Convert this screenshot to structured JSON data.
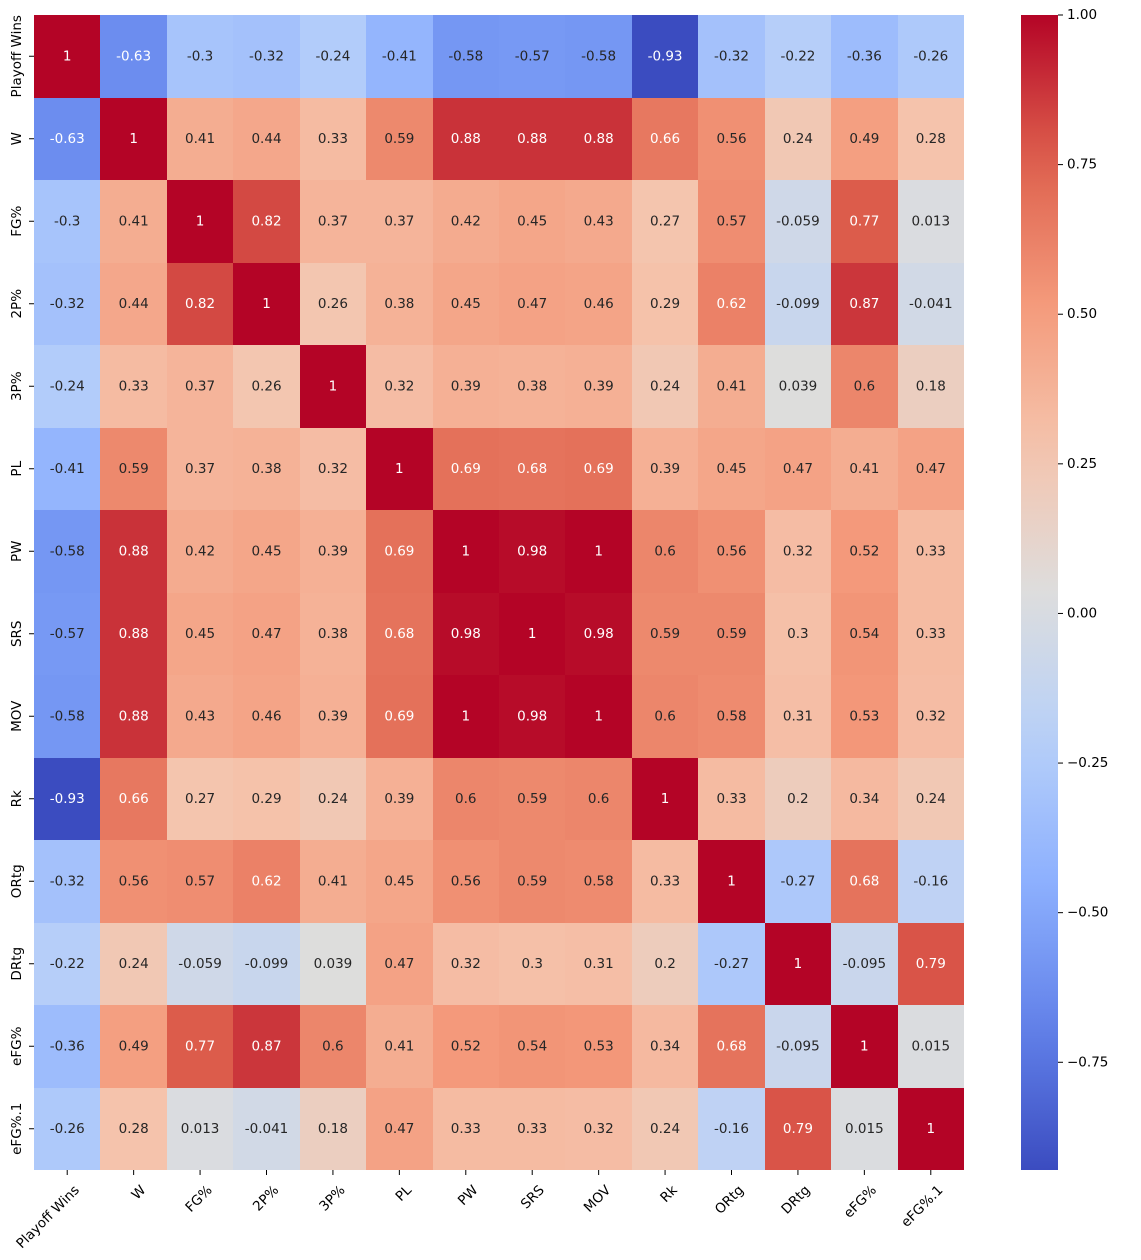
{
  "chart_data": {
    "type": "heatmap",
    "title": "",
    "xlabel": "",
    "ylabel": "",
    "colormap": "coolwarm",
    "vmin": -0.93,
    "vmax": 1.0,
    "colorbar_ticks": [
      1.0,
      0.75,
      0.5,
      0.25,
      0.0,
      -0.25,
      -0.5,
      -0.75
    ],
    "colorbar_tick_labels": [
      "1.00",
      "0.75",
      "0.50",
      "0.25",
      "0.00",
      "−0.25",
      "−0.50",
      "−0.75"
    ],
    "labels": [
      "Playoff Wins",
      "W",
      "FG%",
      "2P%",
      "3P%",
      "PL",
      "PW",
      "SRS",
      "MOV",
      "Rk",
      "ORtg",
      "DRtg",
      "eFG%",
      "eFG%.1"
    ],
    "values": [
      [
        1,
        -0.63,
        -0.3,
        -0.32,
        -0.24,
        -0.41,
        -0.58,
        -0.57,
        -0.58,
        -0.93,
        -0.32,
        -0.22,
        -0.36,
        -0.26
      ],
      [
        -0.63,
        1,
        0.41,
        0.44,
        0.33,
        0.59,
        0.88,
        0.88,
        0.88,
        0.66,
        0.56,
        0.24,
        0.49,
        0.28
      ],
      [
        -0.3,
        0.41,
        1,
        0.82,
        0.37,
        0.37,
        0.42,
        0.45,
        0.43,
        0.27,
        0.57,
        -0.059,
        0.77,
        0.013
      ],
      [
        -0.32,
        0.44,
        0.82,
        1,
        0.26,
        0.38,
        0.45,
        0.47,
        0.46,
        0.29,
        0.62,
        -0.099,
        0.87,
        -0.041
      ],
      [
        -0.24,
        0.33,
        0.37,
        0.26,
        1,
        0.32,
        0.39,
        0.38,
        0.39,
        0.24,
        0.41,
        0.039,
        0.6,
        0.18
      ],
      [
        -0.41,
        0.59,
        0.37,
        0.38,
        0.32,
        1,
        0.69,
        0.68,
        0.69,
        0.39,
        0.45,
        0.47,
        0.41,
        0.47
      ],
      [
        -0.58,
        0.88,
        0.42,
        0.45,
        0.39,
        0.69,
        1,
        0.98,
        1,
        0.6,
        0.56,
        0.32,
        0.52,
        0.33
      ],
      [
        -0.57,
        0.88,
        0.45,
        0.47,
        0.38,
        0.68,
        0.98,
        1,
        0.98,
        0.59,
        0.59,
        0.3,
        0.54,
        0.33
      ],
      [
        -0.58,
        0.88,
        0.43,
        0.46,
        0.39,
        0.69,
        1,
        0.98,
        1,
        0.6,
        0.58,
        0.31,
        0.53,
        0.32
      ],
      [
        -0.93,
        0.66,
        0.27,
        0.29,
        0.24,
        0.39,
        0.6,
        0.59,
        0.6,
        1,
        0.33,
        0.2,
        0.34,
        0.24
      ],
      [
        -0.32,
        0.56,
        0.57,
        0.62,
        0.41,
        0.45,
        0.56,
        0.59,
        0.58,
        0.33,
        1,
        -0.27,
        0.68,
        -0.16
      ],
      [
        -0.22,
        0.24,
        -0.059,
        -0.099,
        0.039,
        0.47,
        0.32,
        0.3,
        0.31,
        0.2,
        -0.27,
        1,
        -0.095,
        0.79
      ],
      [
        -0.36,
        0.49,
        0.77,
        0.87,
        0.6,
        0.41,
        0.52,
        0.54,
        0.53,
        0.34,
        0.68,
        -0.095,
        1,
        0.015
      ],
      [
        -0.26,
        0.28,
        0.013,
        -0.041,
        0.18,
        0.47,
        0.33,
        0.33,
        0.32,
        0.24,
        -0.16,
        0.79,
        0.015,
        1
      ]
    ],
    "annotations": [
      [
        "1",
        "-0.63",
        "-0.3",
        "-0.32",
        "-0.24",
        "-0.41",
        "-0.58",
        "-0.57",
        "-0.58",
        "-0.93",
        "-0.32",
        "-0.22",
        "-0.36",
        "-0.26"
      ],
      [
        "-0.63",
        "1",
        "0.41",
        "0.44",
        "0.33",
        "0.59",
        "0.88",
        "0.88",
        "0.88",
        "0.66",
        "0.56",
        "0.24",
        "0.49",
        "0.28"
      ],
      [
        "-0.3",
        "0.41",
        "1",
        "0.82",
        "0.37",
        "0.37",
        "0.42",
        "0.45",
        "0.43",
        "0.27",
        "0.57",
        "-0.059",
        "0.77",
        "0.013"
      ],
      [
        "-0.32",
        "0.44",
        "0.82",
        "1",
        "0.26",
        "0.38",
        "0.45",
        "0.47",
        "0.46",
        "0.29",
        "0.62",
        "-0.099",
        "0.87",
        "-0.041"
      ],
      [
        "-0.24",
        "0.33",
        "0.37",
        "0.26",
        "1",
        "0.32",
        "0.39",
        "0.38",
        "0.39",
        "0.24",
        "0.41",
        "0.039",
        "0.6",
        "0.18"
      ],
      [
        "-0.41",
        "0.59",
        "0.37",
        "0.38",
        "0.32",
        "1",
        "0.69",
        "0.68",
        "0.69",
        "0.39",
        "0.45",
        "0.47",
        "0.41",
        "0.47"
      ],
      [
        "-0.58",
        "0.88",
        "0.42",
        "0.45",
        "0.39",
        "0.69",
        "1",
        "0.98",
        "1",
        "0.6",
        "0.56",
        "0.32",
        "0.52",
        "0.33"
      ],
      [
        "-0.57",
        "0.88",
        "0.45",
        "0.47",
        "0.38",
        "0.68",
        "0.98",
        "1",
        "0.98",
        "0.59",
        "0.59",
        "0.3",
        "0.54",
        "0.33"
      ],
      [
        "-0.58",
        "0.88",
        "0.43",
        "0.46",
        "0.39",
        "0.69",
        "1",
        "0.98",
        "1",
        "0.6",
        "0.58",
        "0.31",
        "0.53",
        "0.32"
      ],
      [
        "-0.93",
        "0.66",
        "0.27",
        "0.29",
        "0.24",
        "0.39",
        "0.6",
        "0.59",
        "0.6",
        "1",
        "0.33",
        "0.2",
        "0.34",
        "0.24"
      ],
      [
        "-0.32",
        "0.56",
        "0.57",
        "0.62",
        "0.41",
        "0.45",
        "0.56",
        "0.59",
        "0.58",
        "0.33",
        "1",
        "-0.27",
        "0.68",
        "-0.16"
      ],
      [
        "-0.22",
        "0.24",
        "-0.059",
        "-0.099",
        "0.039",
        "0.47",
        "0.32",
        "0.3",
        "0.31",
        "0.2",
        "-0.27",
        "1",
        "-0.095",
        "0.79"
      ],
      [
        "-0.36",
        "0.49",
        "0.77",
        "0.87",
        "0.6",
        "0.41",
        "0.52",
        "0.54",
        "0.53",
        "0.34",
        "0.68",
        "-0.095",
        "1",
        "0.015"
      ],
      [
        "-0.26",
        "0.28",
        "0.013",
        "-0.041",
        "0.18",
        "0.47",
        "0.33",
        "0.33",
        "0.32",
        "0.24",
        "-0.16",
        "0.79",
        "0.015",
        "1"
      ]
    ]
  }
}
